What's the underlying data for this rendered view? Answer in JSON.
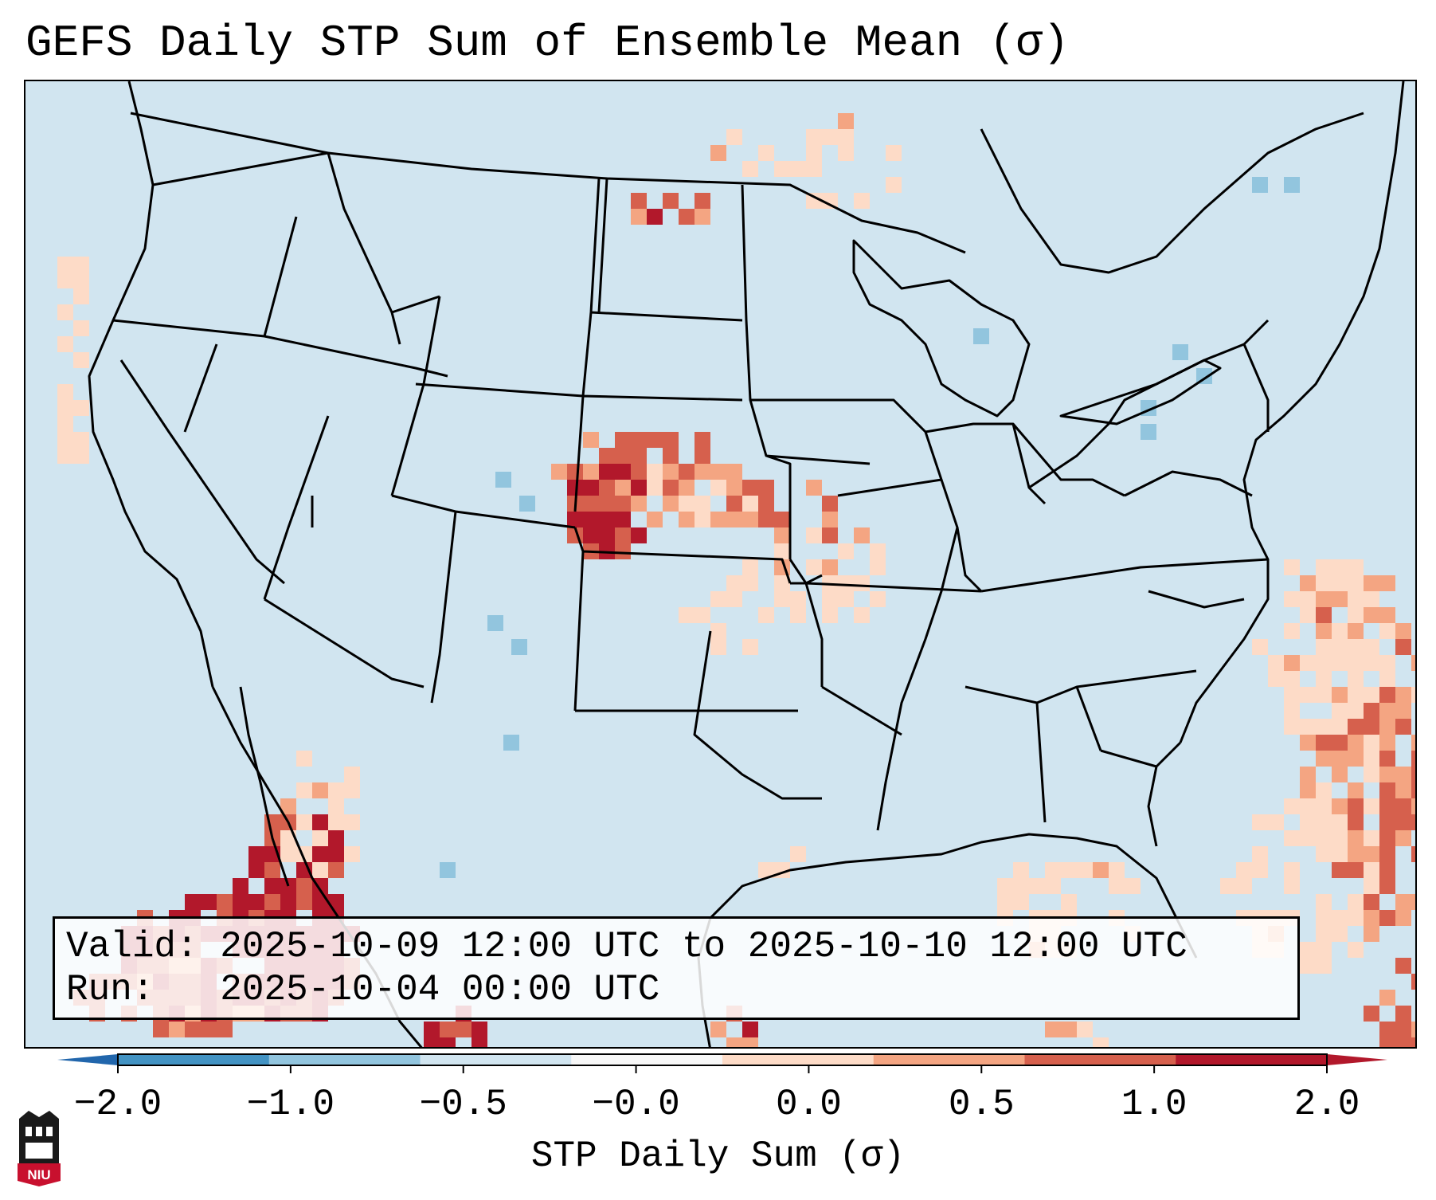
{
  "title": "GEFS Daily STP Sum of Ensemble Mean (σ)",
  "info": {
    "valid_label": "Valid:",
    "valid_value": "2025-10-09 12:00 UTC to 2025-10-10 12:00 UTC",
    "run_label": "Run:",
    "run_value": "2025-10-04 00:00 UTC"
  },
  "colorbar": {
    "label": "STP Daily Sum (σ)",
    "ticks": [
      "−2.0",
      "−1.0",
      "−0.5",
      "−0.0",
      "0.0",
      "0.5",
      "1.0",
      "2.0"
    ],
    "bin_colors": [
      "#4393c3",
      "#92c5de",
      "#d1e5f0",
      "#f7f7f7",
      "#fddbc7",
      "#f4a582",
      "#d6604d",
      "#b2182b"
    ],
    "extend_low_color": "#2166ac",
    "extend_high_color": "#b2182b"
  },
  "map": {
    "region": "Contiguous United States with northern Mexico and western Atlantic",
    "background_color": "#d1e5f0",
    "boundary_color": "#000000"
  },
  "logo": {
    "text": "NIU",
    "icon": "niu-castle-logo-icon",
    "color": "#c8102e"
  }
}
